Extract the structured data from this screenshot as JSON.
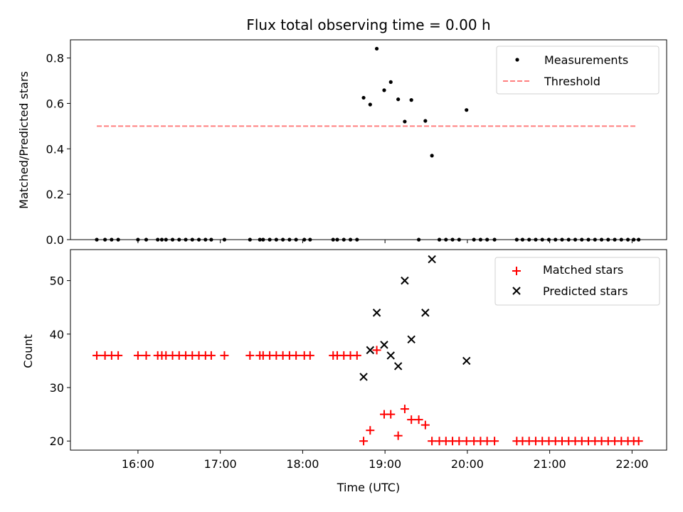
{
  "chart_data": [
    {
      "type": "scatter",
      "title": "Flux total observing time = 0.00 h",
      "xlabel": "",
      "ylabel": "Matched/Predicted stars",
      "ylim": [
        0,
        0.88
      ],
      "xlim": [
        15.18,
        22.42
      ],
      "yticks": [
        0.0,
        0.2,
        0.4,
        0.6,
        0.8
      ],
      "ytick_labels": [
        "0.0",
        "0.2",
        "0.4",
        "0.6",
        "0.8"
      ],
      "threshold": {
        "name": "Threshold",
        "value": 0.5,
        "x_range": [
          15.5,
          22.05
        ],
        "color": "#ff7f7f"
      },
      "legend": [
        "Measurements",
        "Threshold"
      ],
      "legend_position": "top-right",
      "series": [
        {
          "name": "Measurements",
          "color": "#000000",
          "points": [
            [
              15.5,
              0
            ],
            [
              15.6,
              0
            ],
            [
              15.68,
              0
            ],
            [
              15.76,
              0
            ],
            [
              16.0,
              0
            ],
            [
              16.1,
              0
            ],
            [
              16.24,
              0
            ],
            [
              16.29,
              0
            ],
            [
              16.34,
              0
            ],
            [
              16.42,
              0
            ],
            [
              16.5,
              0
            ],
            [
              16.58,
              0
            ],
            [
              16.66,
              0
            ],
            [
              16.74,
              0
            ],
            [
              16.82,
              0
            ],
            [
              16.89,
              0
            ],
            [
              17.05,
              0
            ],
            [
              17.36,
              0
            ],
            [
              17.48,
              0
            ],
            [
              17.52,
              0
            ],
            [
              17.6,
              0
            ],
            [
              17.68,
              0
            ],
            [
              17.76,
              0
            ],
            [
              17.84,
              0
            ],
            [
              17.92,
              0
            ],
            [
              18.02,
              0
            ],
            [
              18.09,
              0
            ],
            [
              18.37,
              0
            ],
            [
              18.42,
              0
            ],
            [
              18.5,
              0
            ],
            [
              18.58,
              0
            ],
            [
              18.66,
              0
            ],
            [
              18.74,
              0.625
            ],
            [
              18.82,
              0.595
            ],
            [
              18.9,
              0.841
            ],
            [
              18.99,
              0.658
            ],
            [
              19.07,
              0.694
            ],
            [
              19.16,
              0.618
            ],
            [
              19.24,
              0.52
            ],
            [
              19.32,
              0.615
            ],
            [
              19.41,
              0
            ],
            [
              19.49,
              0.523
            ],
            [
              19.57,
              0.37
            ],
            [
              19.66,
              0
            ],
            [
              19.74,
              0
            ],
            [
              19.82,
              0
            ],
            [
              19.9,
              0
            ],
            [
              19.99,
              0.571
            ],
            [
              20.08,
              0
            ],
            [
              20.16,
              0
            ],
            [
              20.24,
              0
            ],
            [
              20.33,
              0
            ],
            [
              20.6,
              0
            ],
            [
              20.67,
              0
            ],
            [
              20.75,
              0
            ],
            [
              20.83,
              0
            ],
            [
              20.91,
              0
            ],
            [
              20.99,
              0
            ],
            [
              21.07,
              0
            ],
            [
              21.15,
              0
            ],
            [
              21.23,
              0
            ],
            [
              21.31,
              0
            ],
            [
              21.39,
              0
            ],
            [
              21.47,
              0
            ],
            [
              21.55,
              0
            ],
            [
              21.63,
              0
            ],
            [
              21.71,
              0
            ],
            [
              21.79,
              0
            ],
            [
              21.87,
              0
            ],
            [
              21.95,
              0
            ],
            [
              22.02,
              0
            ],
            [
              22.08,
              0
            ]
          ]
        }
      ]
    },
    {
      "type": "scatter",
      "title": "",
      "xlabel": "Time (UTC)",
      "ylabel": "Count",
      "ylim": [
        18.3,
        55.8
      ],
      "xlim": [
        15.18,
        22.42
      ],
      "yticks": [
        20,
        30,
        40,
        50
      ],
      "ytick_labels": [
        "20",
        "30",
        "40",
        "50"
      ],
      "xticks": [
        16,
        17,
        18,
        19,
        20,
        21,
        22
      ],
      "xtick_labels": [
        "16:00",
        "17:00",
        "18:00",
        "19:00",
        "20:00",
        "21:00",
        "22:00"
      ],
      "legend": [
        "Matched stars",
        "Predicted stars"
      ],
      "legend_position": "top-right",
      "series": [
        {
          "name": "Matched stars",
          "marker": "plus",
          "color": "#ff0000",
          "points": [
            [
              15.5,
              36
            ],
            [
              15.6,
              36
            ],
            [
              15.68,
              36
            ],
            [
              15.76,
              36
            ],
            [
              16.0,
              36
            ],
            [
              16.1,
              36
            ],
            [
              16.24,
              36
            ],
            [
              16.29,
              36
            ],
            [
              16.34,
              36
            ],
            [
              16.42,
              36
            ],
            [
              16.5,
              36
            ],
            [
              16.58,
              36
            ],
            [
              16.66,
              36
            ],
            [
              16.74,
              36
            ],
            [
              16.82,
              36
            ],
            [
              16.89,
              36
            ],
            [
              17.05,
              36
            ],
            [
              17.36,
              36
            ],
            [
              17.48,
              36
            ],
            [
              17.52,
              36
            ],
            [
              17.6,
              36
            ],
            [
              17.68,
              36
            ],
            [
              17.76,
              36
            ],
            [
              17.84,
              36
            ],
            [
              17.92,
              36
            ],
            [
              18.02,
              36
            ],
            [
              18.09,
              36
            ],
            [
              18.37,
              36
            ],
            [
              18.42,
              36
            ],
            [
              18.5,
              36
            ],
            [
              18.58,
              36
            ],
            [
              18.66,
              36
            ],
            [
              18.74,
              20
            ],
            [
              18.82,
              22
            ],
            [
              18.9,
              37
            ],
            [
              18.99,
              25
            ],
            [
              19.07,
              25
            ],
            [
              19.16,
              21
            ],
            [
              19.24,
              26
            ],
            [
              19.32,
              24
            ],
            [
              19.41,
              24
            ],
            [
              19.49,
              23
            ],
            [
              19.57,
              20
            ],
            [
              19.66,
              20
            ],
            [
              19.74,
              20
            ],
            [
              19.82,
              20
            ],
            [
              19.9,
              20
            ],
            [
              19.99,
              20
            ],
            [
              20.08,
              20
            ],
            [
              20.16,
              20
            ],
            [
              20.24,
              20
            ],
            [
              20.33,
              20
            ],
            [
              20.6,
              20
            ],
            [
              20.67,
              20
            ],
            [
              20.75,
              20
            ],
            [
              20.83,
              20
            ],
            [
              20.91,
              20
            ],
            [
              20.99,
              20
            ],
            [
              21.07,
              20
            ],
            [
              21.15,
              20
            ],
            [
              21.23,
              20
            ],
            [
              21.31,
              20
            ],
            [
              21.39,
              20
            ],
            [
              21.47,
              20
            ],
            [
              21.55,
              20
            ],
            [
              21.63,
              20
            ],
            [
              21.71,
              20
            ],
            [
              21.79,
              20
            ],
            [
              21.87,
              20
            ],
            [
              21.95,
              20
            ],
            [
              22.02,
              20
            ],
            [
              22.08,
              20
            ]
          ]
        },
        {
          "name": "Predicted stars",
          "marker": "x",
          "color": "#000000",
          "points": [
            [
              18.74,
              32
            ],
            [
              18.82,
              37
            ],
            [
              18.9,
              44
            ],
            [
              18.99,
              38
            ],
            [
              19.07,
              36
            ],
            [
              19.16,
              34
            ],
            [
              19.24,
              50
            ],
            [
              19.32,
              39
            ],
            [
              19.49,
              44
            ],
            [
              19.57,
              54
            ],
            [
              19.99,
              35
            ]
          ]
        }
      ]
    }
  ]
}
